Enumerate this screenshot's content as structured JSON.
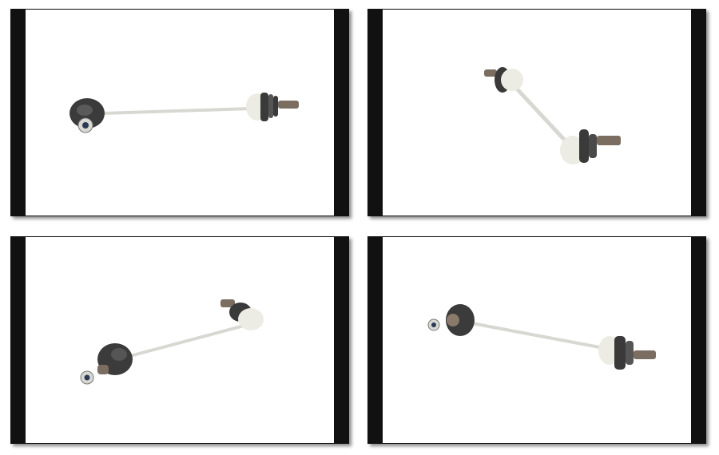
{
  "gallery": {
    "subject": "stabilizer-link",
    "views": [
      {
        "id": "view-1"
      },
      {
        "id": "view-2"
      },
      {
        "id": "view-3"
      },
      {
        "id": "view-4"
      }
    ]
  },
  "colors": {
    "frame_bar": "#111111",
    "background": "#ffffff",
    "rod": "#dcdcd6",
    "housing_dark": "#3a3a3a",
    "housing_light": "#e8e8e0",
    "thread": "#8a7a6a"
  }
}
